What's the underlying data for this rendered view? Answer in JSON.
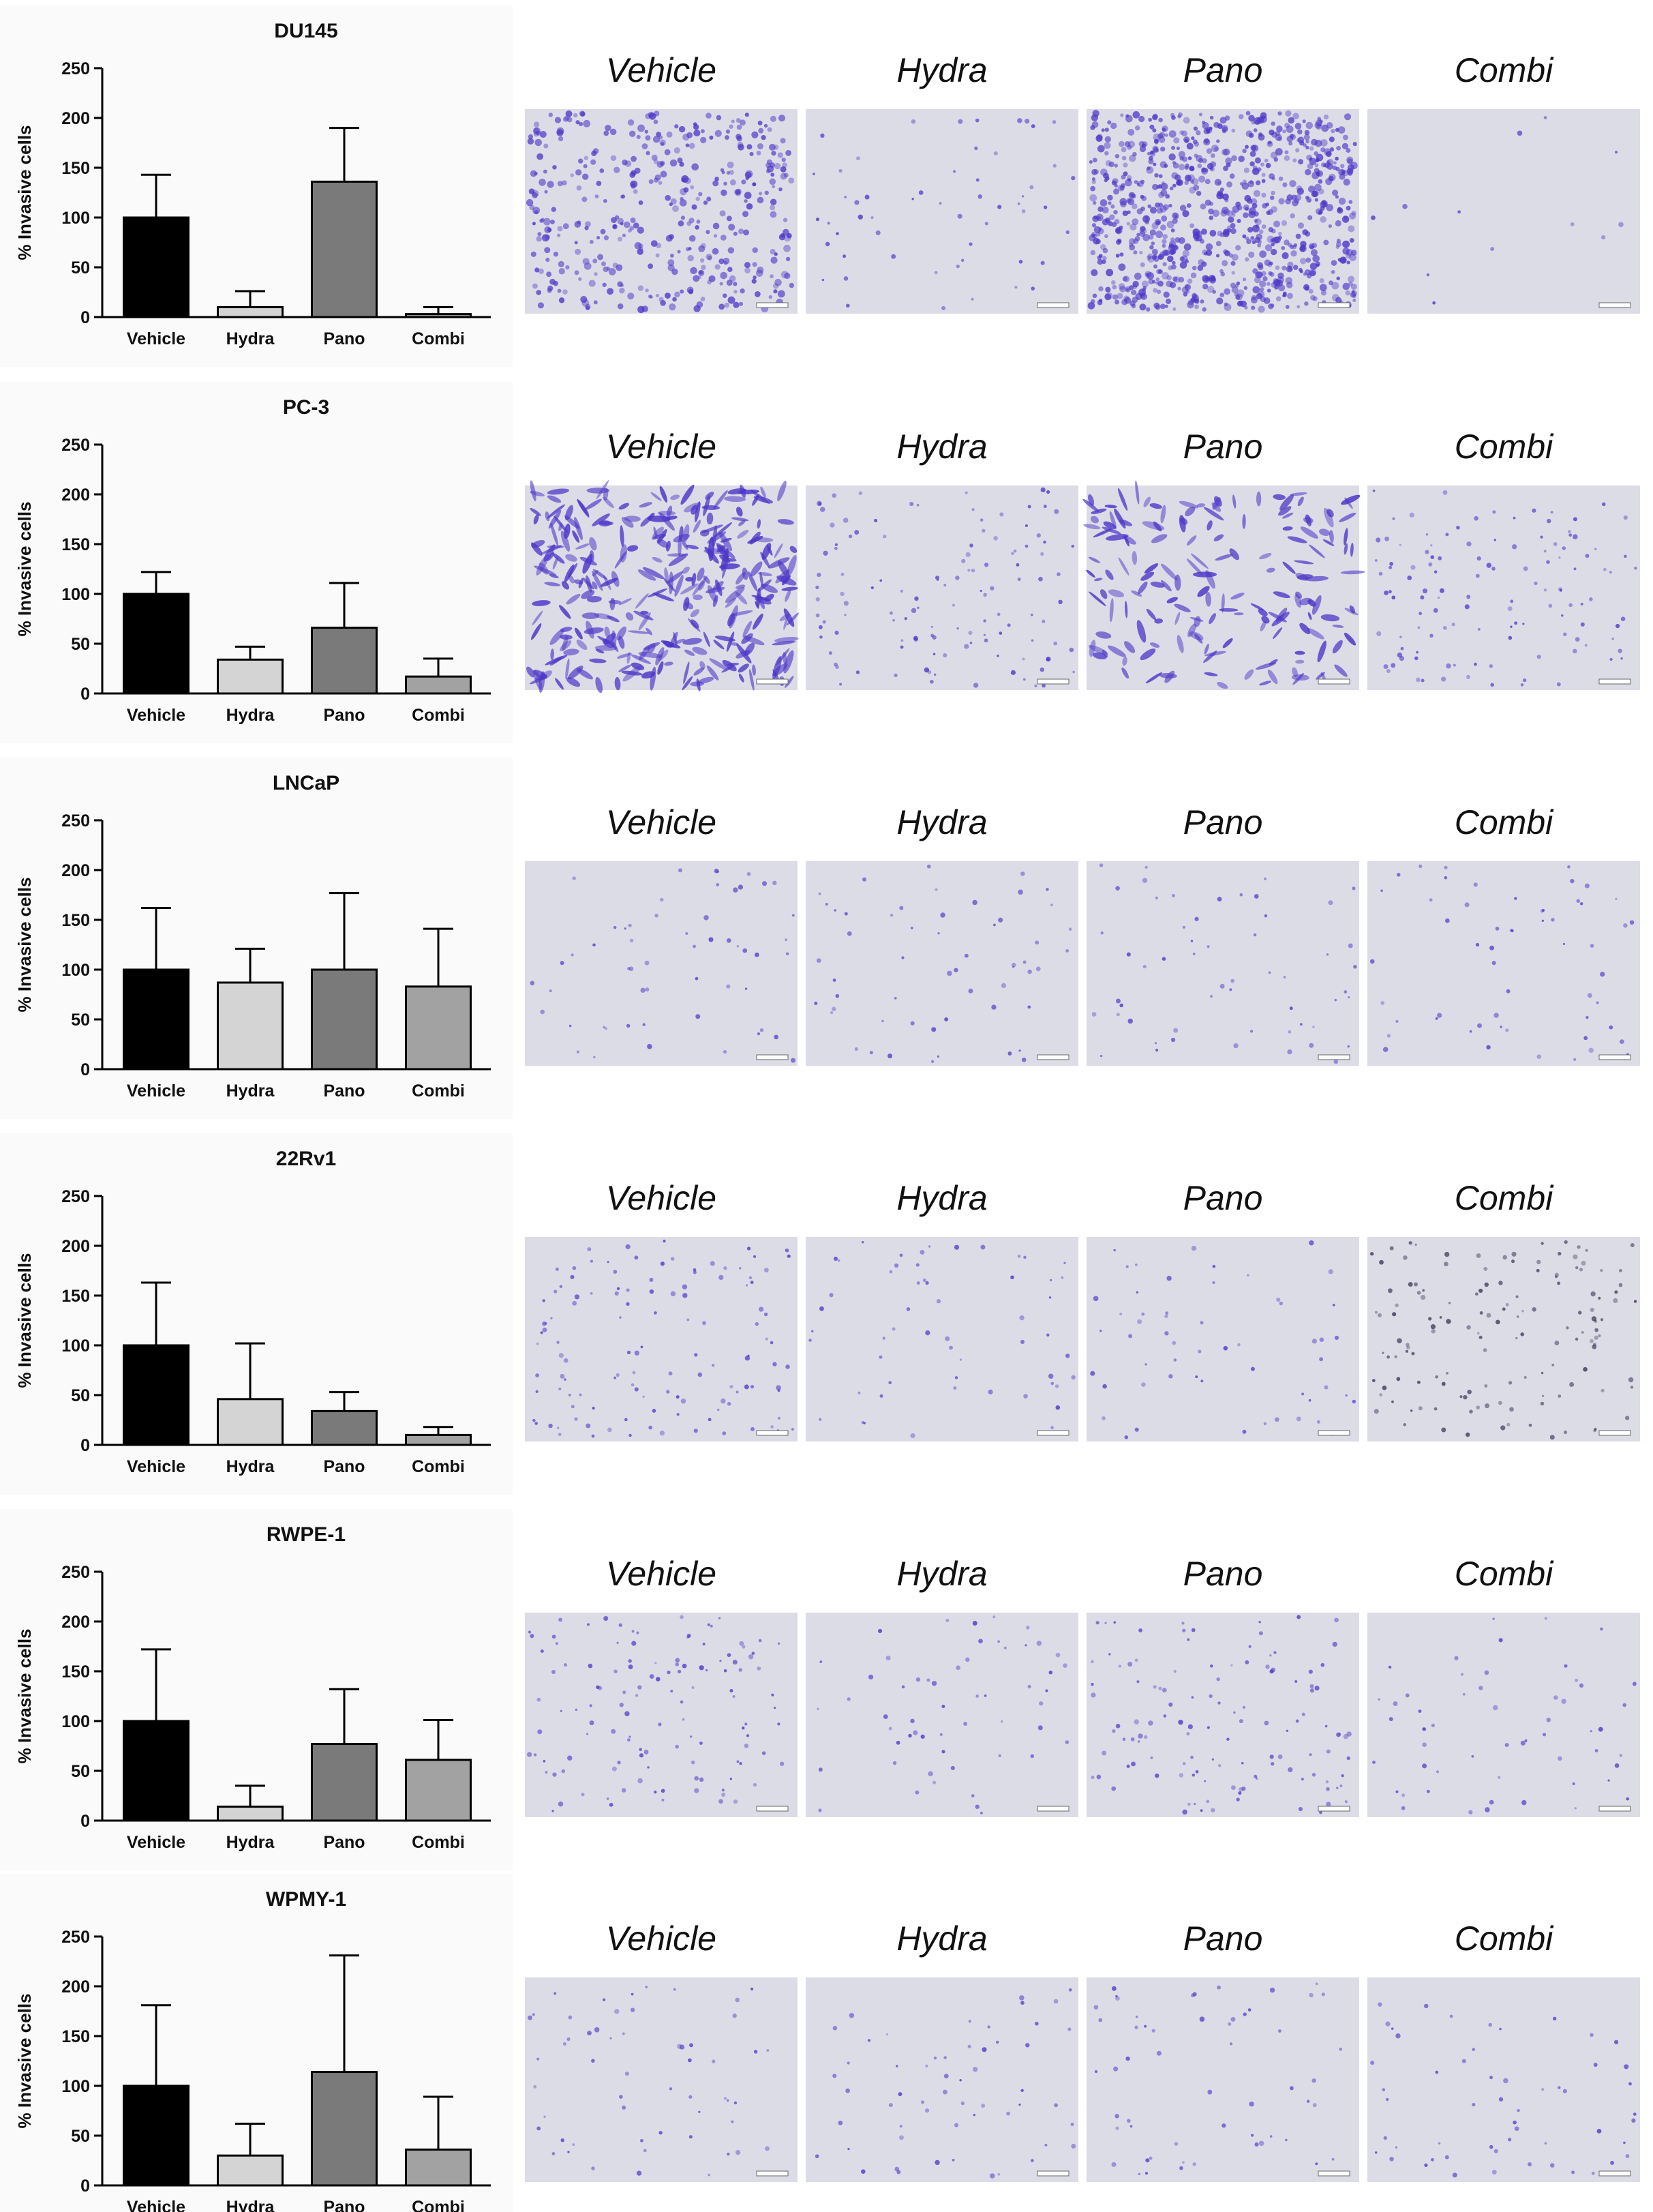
{
  "figure": {
    "treatment_labels": [
      "Vehicle",
      "Hydra",
      "Pano",
      "Combi"
    ],
    "bar_colors": [
      "#000000",
      "#d4d4d4",
      "#7a7a7a",
      "#a2a2a2"
    ],
    "plot_background": "#fafafa",
    "micrograph_background": "#dcdce6",
    "stain_color": "#4b36c8"
  },
  "chart_data": [
    {
      "type": "bar",
      "title": "DU145",
      "xlabel": "",
      "ylabel": "% Invasive cells",
      "ylim": [
        0,
        250
      ],
      "yticks": [
        0,
        50,
        100,
        150,
        200,
        250
      ],
      "categories": [
        "Vehicle",
        "Hydra",
        "Pano",
        "Combi"
      ],
      "values": [
        100,
        10,
        136,
        3
      ],
      "error_upper": [
        143,
        26,
        190,
        10
      ],
      "cell_density": [
        "high",
        "low",
        "very-high",
        "minimal"
      ]
    },
    {
      "type": "bar",
      "title": "PC-3",
      "xlabel": "",
      "ylabel": "% Invasive cells",
      "ylim": [
        0,
        250
      ],
      "yticks": [
        0,
        50,
        100,
        150,
        200,
        250
      ],
      "categories": [
        "Vehicle",
        "Hydra",
        "Pano",
        "Combi"
      ],
      "values": [
        100,
        34,
        66,
        17
      ],
      "error_upper": [
        122,
        47,
        111,
        35
      ],
      "cell_density": [
        "high-elongated",
        "medium",
        "medium-elongated",
        "medium"
      ]
    },
    {
      "type": "bar",
      "title": "LNCaP",
      "xlabel": "",
      "ylabel": "% Invasive cells",
      "ylim": [
        0,
        250
      ],
      "yticks": [
        0,
        50,
        100,
        150,
        200,
        250
      ],
      "categories": [
        "Vehicle",
        "Hydra",
        "Pano",
        "Combi"
      ],
      "values": [
        100,
        87,
        100,
        83
      ],
      "error_upper": [
        162,
        121,
        177,
        141
      ],
      "cell_density": [
        "low",
        "low",
        "low",
        "low"
      ]
    },
    {
      "type": "bar",
      "title": "22Rv1",
      "xlabel": "",
      "ylabel": "% Invasive cells",
      "ylim": [
        0,
        250
      ],
      "yticks": [
        0,
        50,
        100,
        150,
        200,
        250
      ],
      "categories": [
        "Vehicle",
        "Hydra",
        "Pano",
        "Combi"
      ],
      "values": [
        100,
        46,
        34,
        10
      ],
      "error_upper": [
        163,
        102,
        53,
        18
      ],
      "cell_density": [
        "medium",
        "low",
        "low",
        "low-dark"
      ]
    },
    {
      "type": "bar",
      "title": "RWPE-1",
      "xlabel": "",
      "ylabel": "% Invasive cells",
      "ylim": [
        0,
        250
      ],
      "yticks": [
        0,
        50,
        100,
        150,
        200,
        250
      ],
      "categories": [
        "Vehicle",
        "Hydra",
        "Pano",
        "Combi"
      ],
      "values": [
        100,
        14,
        77,
        61
      ],
      "error_upper": [
        172,
        35,
        132,
        101
      ],
      "cell_density": [
        "medium",
        "low",
        "medium",
        "low"
      ]
    },
    {
      "type": "bar",
      "title": "WPMY-1",
      "xlabel": "",
      "ylabel": "% Invasive cells",
      "ylim": [
        0,
        250
      ],
      "yticks": [
        0,
        50,
        100,
        150,
        200,
        250
      ],
      "categories": [
        "Vehicle",
        "Hydra",
        "Pano",
        "Combi"
      ],
      "values": [
        100,
        30,
        114,
        36
      ],
      "error_upper": [
        181,
        62,
        231,
        89
      ],
      "cell_density": [
        "low",
        "low",
        "low",
        "low"
      ]
    }
  ]
}
